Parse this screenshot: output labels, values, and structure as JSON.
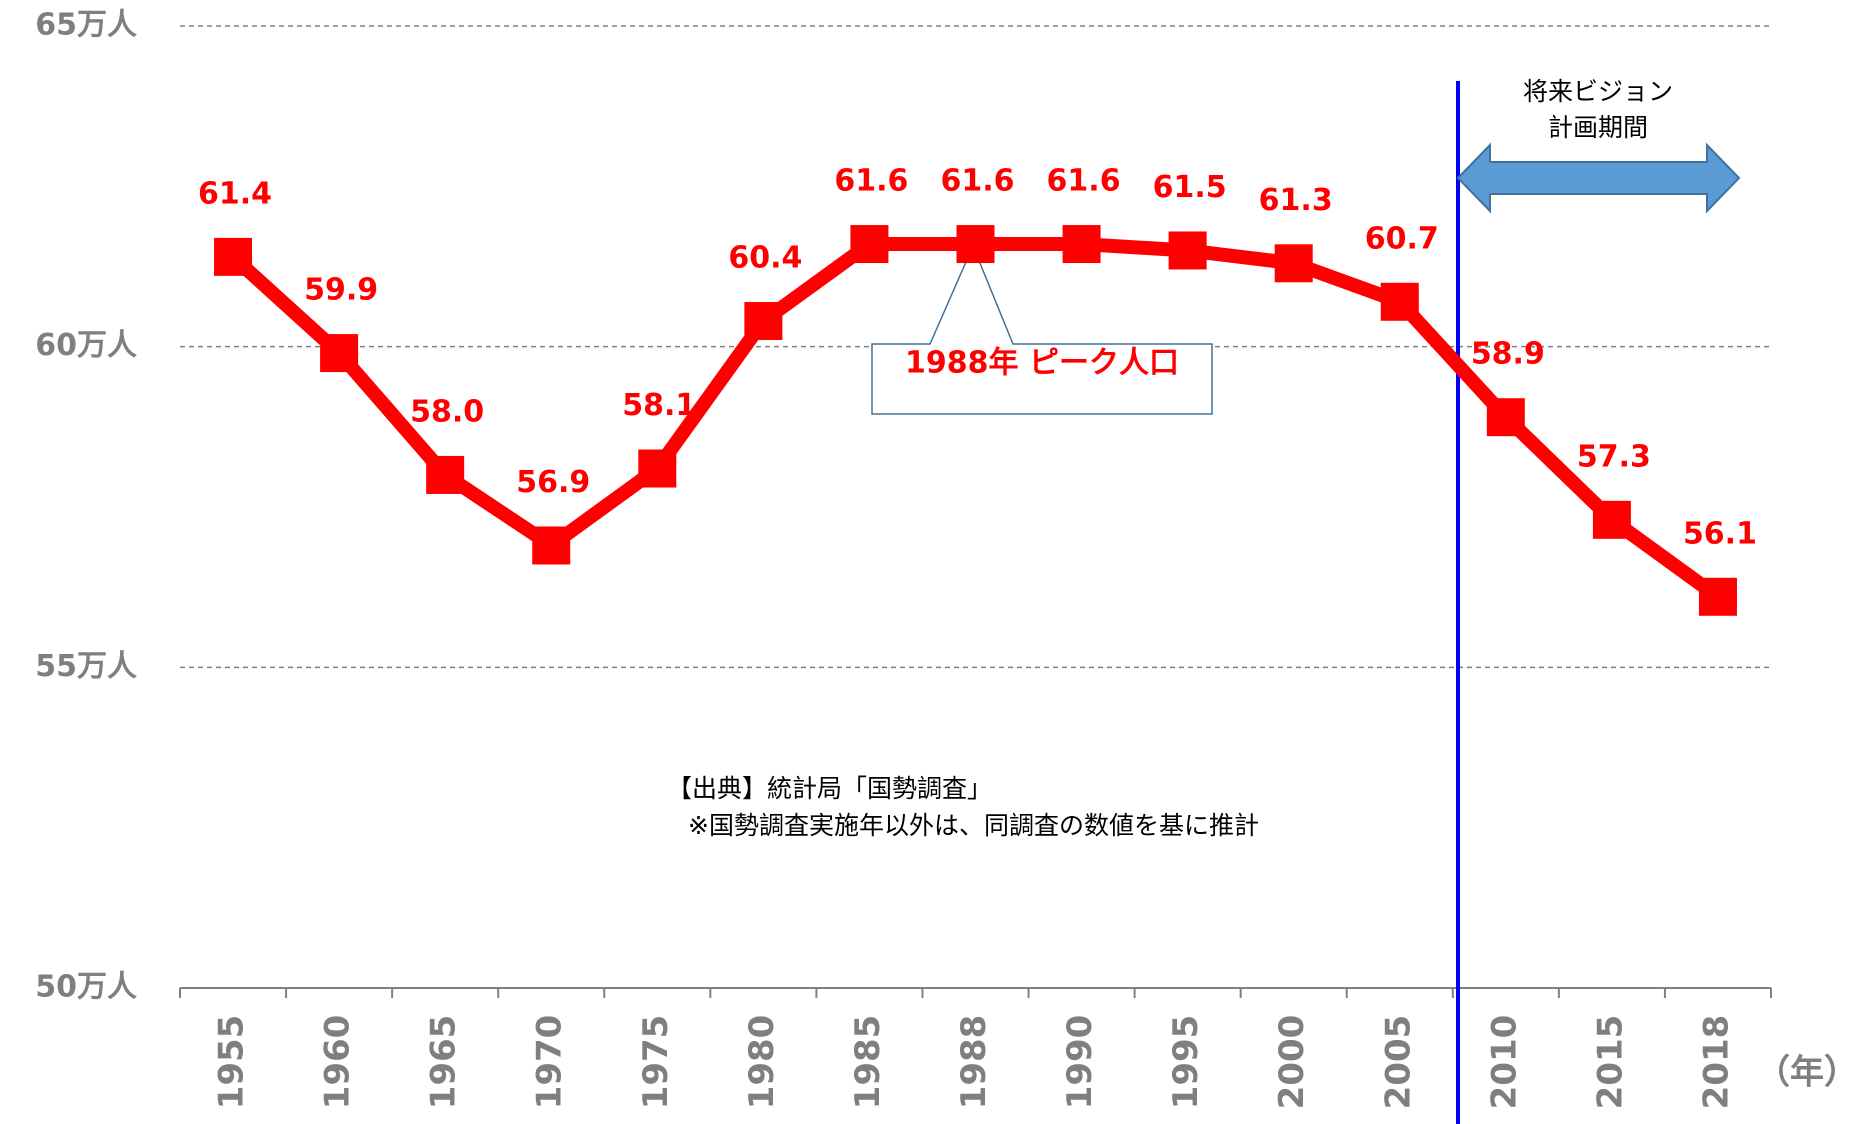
{
  "chart_data": {
    "type": "line",
    "categories": [
      "1955",
      "1960",
      "1965",
      "1970",
      "1975",
      "1980",
      "1985",
      "1988",
      "1990",
      "1995",
      "2000",
      "2005",
      "2010",
      "2015",
      "2018"
    ],
    "series": [
      {
        "name": "人口",
        "color": "#ff0000",
        "values": [
          61.4,
          59.9,
          58.0,
          56.9,
          58.1,
          60.4,
          61.6,
          61.6,
          61.6,
          61.5,
          61.3,
          60.7,
          58.9,
          57.3,
          56.1
        ],
        "value_labels": [
          "61.4",
          "59.9",
          "58.0",
          "56.9",
          "58.1",
          "60.4",
          "61.6",
          "61.6",
          "61.6",
          "61.5",
          "61.3",
          "60.7",
          "58.9",
          "57.3",
          "56.1"
        ]
      }
    ],
    "ylim": [
      50,
      65
    ],
    "yticks": [
      {
        "value": 50,
        "label": "50万人"
      },
      {
        "value": 55,
        "label": "55万人"
      },
      {
        "value": 60,
        "label": "60万人"
      },
      {
        "value": 65,
        "label": "65万人"
      }
    ],
    "grid": true,
    "x_unit": "（年）",
    "annotations": {
      "peak": "1988年 ピーク人口",
      "vision_line1": "将来ビジョン",
      "vision_line2": "計画期間",
      "source_line1": "【出典】統計局「国勢調査」",
      "source_line2": "※国勢調査実施年以外は、同調査の数値を基に推計"
    }
  }
}
